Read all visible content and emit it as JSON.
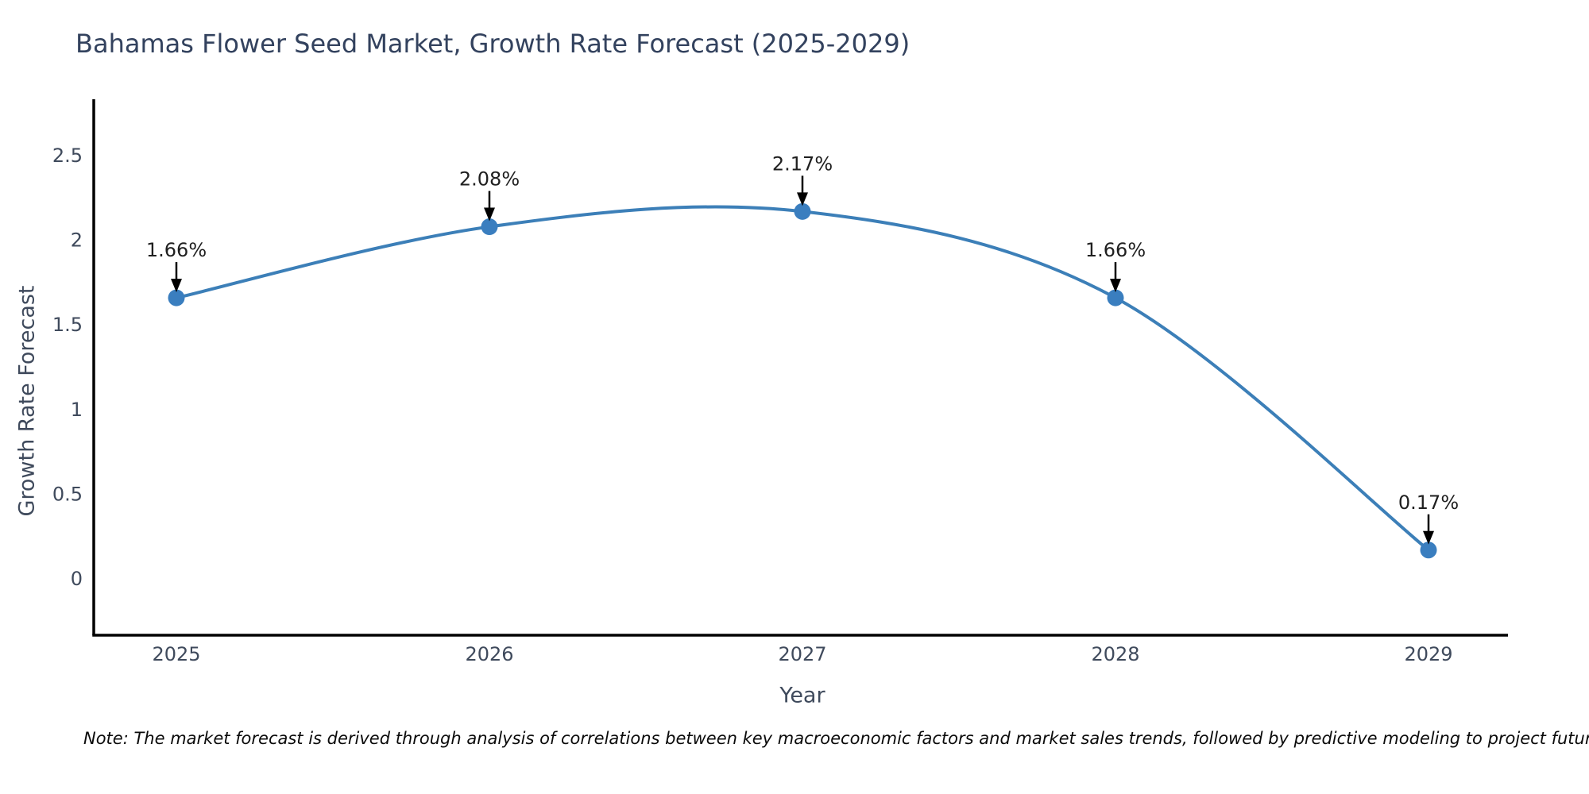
{
  "title": "Bahamas Flower Seed Market, Growth Rate Forecast (2025-2029)",
  "note": "Note: The market forecast is derived through analysis of correlations between key macroeconomic factors and market sales trends, followed by predictive modeling to project future sales",
  "chart_data": {
    "type": "line",
    "title": "Bahamas Flower Seed Market, Growth Rate Forecast (2025-2029)",
    "xlabel": "Year",
    "ylabel": "Growth Rate Forecast",
    "x": [
      2025,
      2026,
      2027,
      2028,
      2029
    ],
    "xticklabels": [
      "2025",
      "2026",
      "2027",
      "2028",
      "2029"
    ],
    "values": [
      1.66,
      2.08,
      2.17,
      1.66,
      0.17
    ],
    "point_labels": [
      "1.66%",
      "2.08%",
      "2.17%",
      "1.66%",
      "0.17%"
    ],
    "yticks": [
      "2.5",
      "2",
      "1.5",
      "1",
      "0.5",
      "0"
    ],
    "ytick_values": [
      2.5,
      2,
      1.5,
      1,
      0.5,
      0
    ],
    "ylim": [
      -0.33,
      2.83
    ],
    "line_shape": "spline",
    "grid": false,
    "legend": "none",
    "colors": {
      "line": "#3c7fb8",
      "marker": "#3a7ebf",
      "axis": "#000000",
      "arrow": "#000000",
      "title_text": "#33425e",
      "tick_text": "#3f4a5c",
      "annotation_text": "#1f1f1f"
    }
  }
}
